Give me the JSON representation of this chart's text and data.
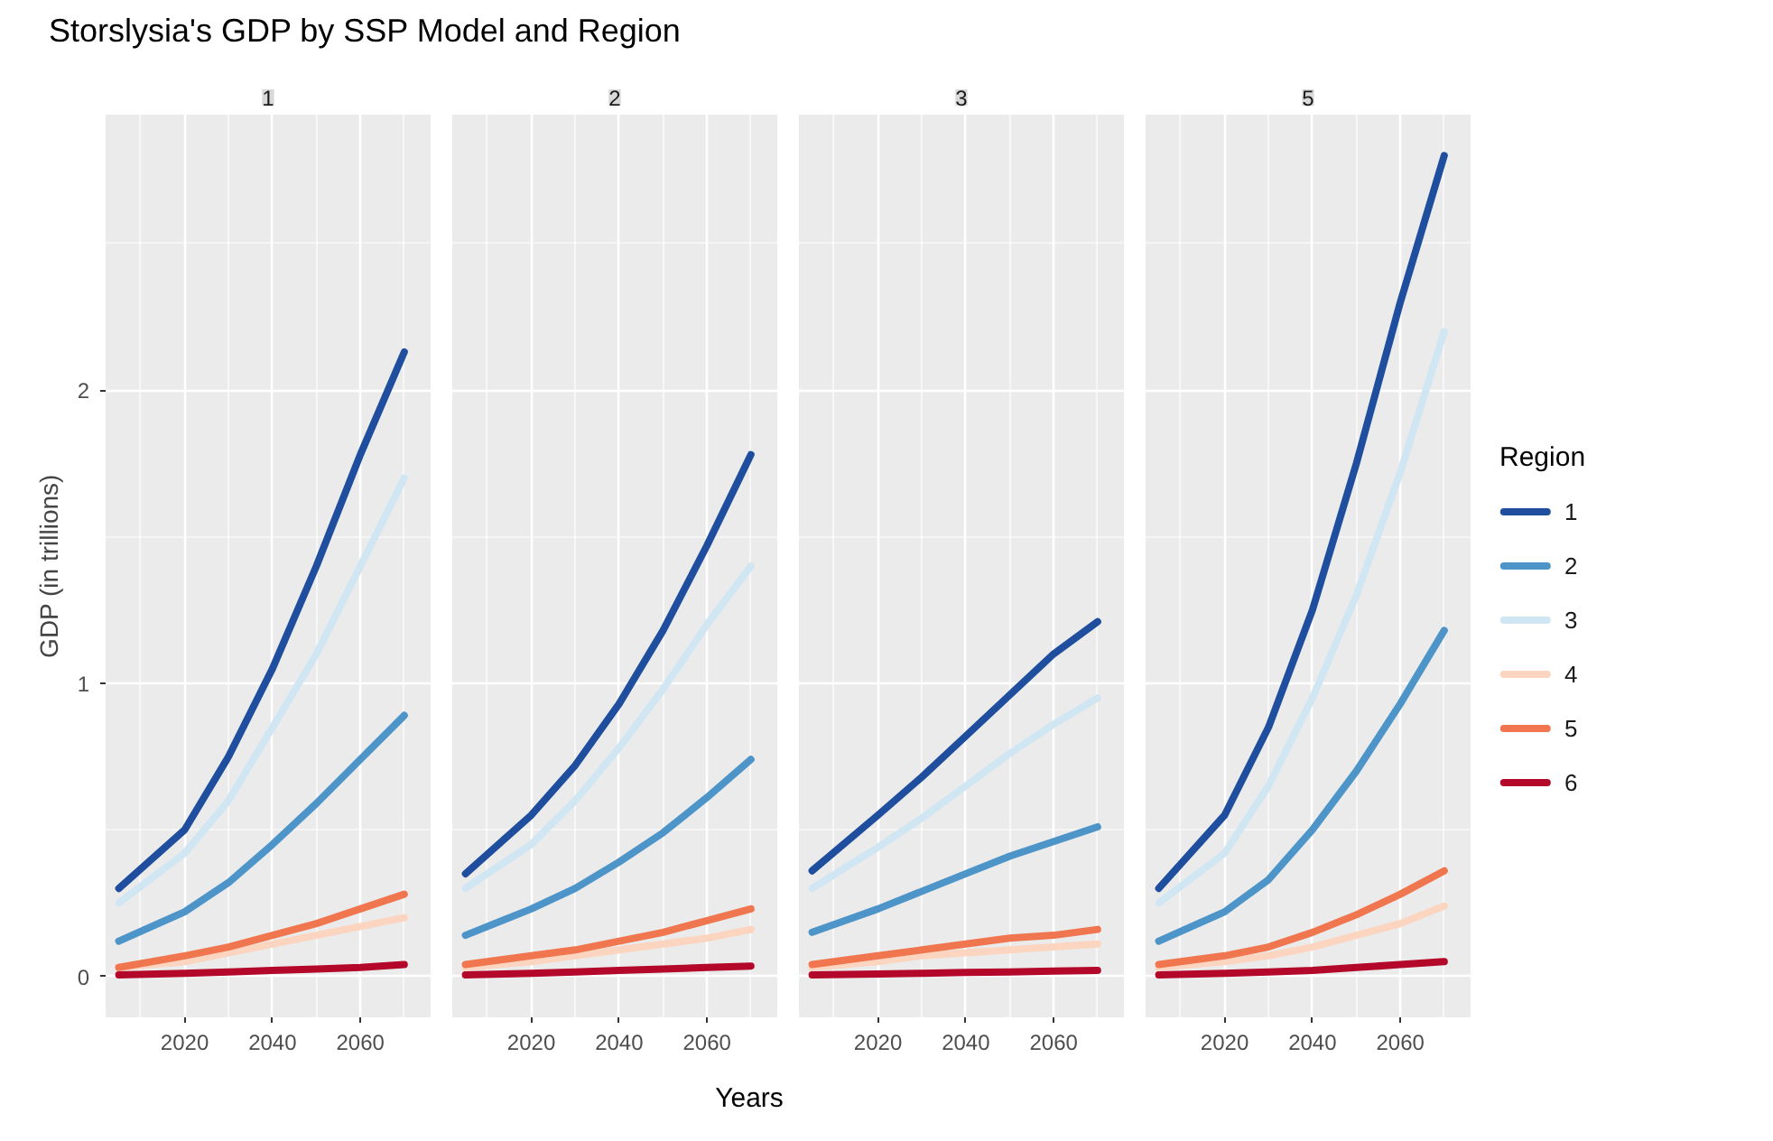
{
  "chart_data": [
    {
      "type": "line",
      "title": "Storslysia's GDP by SSP Model and Region",
      "subtitle": "1",
      "ylabel": "GDP (in trillions)",
      "x": [
        2005,
        2020,
        2030,
        2040,
        2050,
        2060,
        2070
      ],
      "xlim": [
        2002,
        2076
      ],
      "xticks": [
        2020,
        2040,
        2060
      ],
      "ylim": [
        -0.14,
        2.94
      ],
      "yticks": [
        0,
        1,
        2
      ],
      "grid": true,
      "legend": false,
      "series": [
        {
          "color": "#1f4e9e",
          "values": [
            0.3,
            0.5,
            0.75,
            1.05,
            1.4,
            1.78,
            2.13
          ]
        },
        {
          "color": "#4d95c8",
          "values": [
            0.12,
            0.22,
            0.32,
            0.45,
            0.59,
            0.74,
            0.89
          ]
        },
        {
          "color": "#d0e6f2",
          "values": [
            0.25,
            0.42,
            0.6,
            0.85,
            1.1,
            1.4,
            1.7
          ]
        },
        {
          "color": "#fbd5c0",
          "values": [
            0.03,
            0.05,
            0.08,
            0.11,
            0.14,
            0.17,
            0.2
          ]
        },
        {
          "color": "#f0764f",
          "values": [
            0.03,
            0.07,
            0.1,
            0.14,
            0.18,
            0.23,
            0.28
          ]
        },
        {
          "color": "#b4082a",
          "values": [
            0.005,
            0.01,
            0.015,
            0.02,
            0.025,
            0.03,
            0.04
          ]
        }
      ]
    },
    {
      "type": "line",
      "subtitle": "2",
      "xlabel": "Years",
      "x": [
        2005,
        2020,
        2030,
        2040,
        2050,
        2060,
        2070
      ],
      "xlim": [
        2002,
        2076
      ],
      "xticks": [
        2020,
        2040,
        2060
      ],
      "ylim": [
        -0.14,
        2.94
      ],
      "yticks": [
        0,
        1,
        2
      ],
      "grid": true,
      "legend": false,
      "tick_labels": "x",
      "series": [
        {
          "color": "#1f4e9e",
          "values": [
            0.35,
            0.55,
            0.72,
            0.93,
            1.18,
            1.47,
            1.78
          ]
        },
        {
          "color": "#4d95c8",
          "values": [
            0.14,
            0.23,
            0.3,
            0.39,
            0.49,
            0.61,
            0.74
          ]
        },
        {
          "color": "#d0e6f2",
          "values": [
            0.3,
            0.45,
            0.6,
            0.78,
            0.98,
            1.2,
            1.4
          ]
        },
        {
          "color": "#fbd5c0",
          "values": [
            0.03,
            0.05,
            0.07,
            0.09,
            0.11,
            0.13,
            0.16
          ]
        },
        {
          "color": "#f0764f",
          "values": [
            0.04,
            0.07,
            0.09,
            0.12,
            0.15,
            0.19,
            0.23
          ]
        },
        {
          "color": "#b4082a",
          "values": [
            0.005,
            0.01,
            0.015,
            0.02,
            0.025,
            0.03,
            0.035
          ]
        }
      ]
    },
    {
      "type": "line",
      "subtitle": "3",
      "x": [
        2005,
        2020,
        2030,
        2040,
        2050,
        2060,
        2070
      ],
      "xlim": [
        2002,
        2076
      ],
      "xticks": [
        2020,
        2040,
        2060
      ],
      "ylim": [
        -0.14,
        2.94
      ],
      "yticks": [
        0,
        1,
        2
      ],
      "grid": true,
      "legend": false,
      "tick_labels": "x",
      "series": [
        {
          "color": "#1f4e9e",
          "values": [
            0.36,
            0.55,
            0.68,
            0.82,
            0.96,
            1.1,
            1.21
          ]
        },
        {
          "color": "#4d95c8",
          "values": [
            0.15,
            0.23,
            0.29,
            0.35,
            0.41,
            0.46,
            0.51
          ]
        },
        {
          "color": "#d0e6f2",
          "values": [
            0.3,
            0.44,
            0.54,
            0.65,
            0.76,
            0.86,
            0.95
          ]
        },
        {
          "color": "#fbd5c0",
          "values": [
            0.03,
            0.05,
            0.07,
            0.08,
            0.09,
            0.1,
            0.11
          ]
        },
        {
          "color": "#f0764f",
          "values": [
            0.04,
            0.07,
            0.09,
            0.11,
            0.13,
            0.14,
            0.16
          ]
        },
        {
          "color": "#b4082a",
          "values": [
            0.005,
            0.008,
            0.01,
            0.013,
            0.015,
            0.018,
            0.02
          ]
        }
      ]
    },
    {
      "type": "line",
      "subtitle": "5",
      "legend_title": "Region",
      "x": [
        2005,
        2020,
        2030,
        2040,
        2050,
        2060,
        2070
      ],
      "xlim": [
        2002,
        2076
      ],
      "xticks": [
        2020,
        2040,
        2060
      ],
      "ylim": [
        -0.14,
        2.94
      ],
      "yticks": [
        0,
        1,
        2
      ],
      "grid": true,
      "legend": "right",
      "tick_labels": "x",
      "series": [
        {
          "name": "1",
          "color": "#1f4e9e",
          "values": [
            0.3,
            0.55,
            0.85,
            1.25,
            1.75,
            2.3,
            2.8
          ]
        },
        {
          "name": "2",
          "color": "#4d95c8",
          "values": [
            0.12,
            0.22,
            0.33,
            0.5,
            0.7,
            0.93,
            1.18
          ]
        },
        {
          "name": "3",
          "color": "#d0e6f2",
          "values": [
            0.25,
            0.42,
            0.65,
            0.95,
            1.3,
            1.72,
            2.2
          ]
        },
        {
          "name": "4",
          "color": "#fbd5c0",
          "values": [
            0.03,
            0.05,
            0.07,
            0.1,
            0.14,
            0.18,
            0.24
          ]
        },
        {
          "name": "5",
          "color": "#f0764f",
          "values": [
            0.04,
            0.07,
            0.1,
            0.15,
            0.21,
            0.28,
            0.36
          ]
        },
        {
          "name": "6",
          "color": "#b4082a",
          "values": [
            0.005,
            0.01,
            0.015,
            0.02,
            0.03,
            0.04,
            0.05
          ]
        }
      ]
    }
  ]
}
